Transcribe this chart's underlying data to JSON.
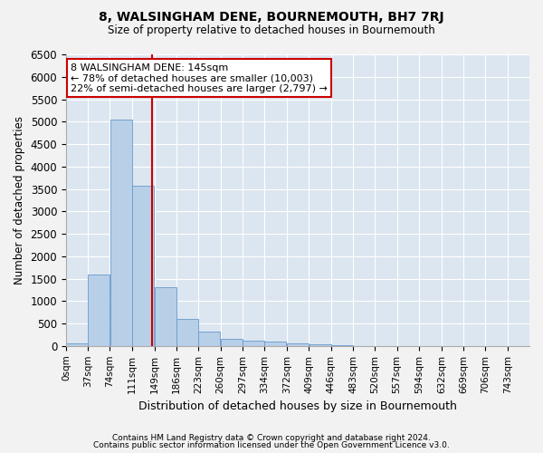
{
  "title": "8, WALSINGHAM DENE, BOURNEMOUTH, BH7 7RJ",
  "subtitle": "Size of property relative to detached houses in Bournemouth",
  "xlabel": "Distribution of detached houses by size in Bournemouth",
  "ylabel": "Number of detached properties",
  "bar_color": "#b8cfe8",
  "bar_edge_color": "#6699cc",
  "background_color": "#dce6f0",
  "grid_color": "#ffffff",
  "fig_background": "#f2f2f2",
  "annotation_line_color": "#cc0000",
  "annotation_box_color": "#cc0000",
  "annotation_line1": "8 WALSINGHAM DENE: 145sqm",
  "annotation_line2": "← 78% of detached houses are smaller (10,003)",
  "annotation_line3": "22% of semi-detached houses are larger (2,797) →",
  "footer_line1": "Contains HM Land Registry data © Crown copyright and database right 2024.",
  "footer_line2": "Contains public sector information licensed under the Open Government Licence v3.0.",
  "bin_labels": [
    "0sqm",
    "37sqm",
    "74sqm",
    "111sqm",
    "149sqm",
    "186sqm",
    "223sqm",
    "260sqm",
    "297sqm",
    "334sqm",
    "372sqm",
    "409sqm",
    "446sqm",
    "483sqm",
    "520sqm",
    "557sqm",
    "594sqm",
    "632sqm",
    "669sqm",
    "706sqm",
    "743sqm"
  ],
  "bar_heights": [
    55,
    1600,
    5050,
    3580,
    1310,
    600,
    310,
    150,
    120,
    90,
    50,
    30,
    10,
    5,
    3,
    2,
    1,
    1,
    0,
    0
  ],
  "property_size": 145,
  "bin_width": 37,
  "bin_starts": [
    0,
    37,
    74,
    111,
    149,
    186,
    223,
    260,
    297,
    334,
    372,
    409,
    446,
    483,
    520,
    557,
    594,
    632,
    669,
    706
  ],
  "ylim": [
    0,
    6500
  ],
  "xlim_start": 0,
  "xlim_end": 780
}
